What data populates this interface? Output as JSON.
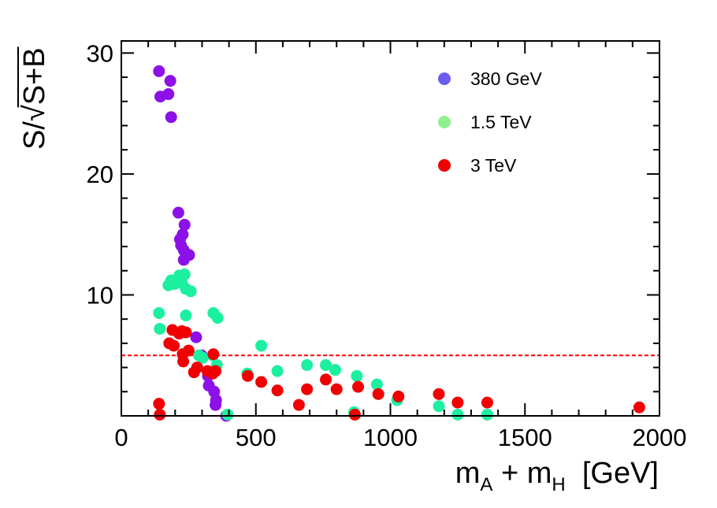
{
  "chart_data": {
    "type": "scatter",
    "title": "",
    "xlabel": "m_A + m_H  [GeV]",
    "xlabel_parts": {
      "main": "m",
      "sub1": "A",
      "plus": " + m",
      "sub2": "H",
      "unit": "  [GeV]"
    },
    "ylabel": "S/√S+B",
    "ylabel_parts": {
      "prefix": "S/",
      "radical": "√",
      "radicand": "S+B"
    },
    "xlim": [
      0,
      2000
    ],
    "ylim": [
      0,
      31
    ],
    "xticks": [
      0,
      500,
      1000,
      1500,
      2000
    ],
    "yticks": [
      10,
      20,
      30
    ],
    "x_minor_step": 100,
    "y_minor_step": 2,
    "reference_line": {
      "y": 5,
      "style": "dashed",
      "color": "#ff0000"
    },
    "legend_position": "top-right",
    "series": [
      {
        "name": "380 GeV",
        "legend_color": "#6b5cf0",
        "color": "#8c10e8",
        "points": [
          [
            140,
            28.5
          ],
          [
            145,
            26.4
          ],
          [
            175,
            26.6
          ],
          [
            182,
            27.7
          ],
          [
            185,
            24.7
          ],
          [
            212,
            16.8
          ],
          [
            235,
            15.8
          ],
          [
            228,
            15.0
          ],
          [
            218,
            14.6
          ],
          [
            222,
            14.1
          ],
          [
            232,
            13.7
          ],
          [
            252,
            13.3
          ],
          [
            232,
            12.9
          ],
          [
            278,
            6.5
          ],
          [
            298,
            5.0
          ],
          [
            322,
            3.3
          ],
          [
            325,
            2.5
          ],
          [
            345,
            2.0
          ],
          [
            352,
            1.3
          ],
          [
            350,
            0.9
          ],
          [
            390,
            0.0
          ]
        ]
      },
      {
        "name": "1.5 TeV",
        "legend_color": "#90f090",
        "color": "#1cf0a0",
        "points": [
          [
            140,
            8.5
          ],
          [
            143,
            7.2
          ],
          [
            175,
            10.8
          ],
          [
            185,
            11.2
          ],
          [
            198,
            10.9
          ],
          [
            215,
            11.6
          ],
          [
            225,
            11.0
          ],
          [
            235,
            11.7
          ],
          [
            240,
            10.5
          ],
          [
            258,
            10.3
          ],
          [
            240,
            8.3
          ],
          [
            342,
            8.5
          ],
          [
            358,
            8.1
          ],
          [
            288,
            5.0
          ],
          [
            302,
            4.8
          ],
          [
            340,
            5.0
          ],
          [
            355,
            4.2
          ],
          [
            468,
            3.5
          ],
          [
            520,
            5.8
          ],
          [
            580,
            3.7
          ],
          [
            690,
            4.2
          ],
          [
            760,
            4.2
          ],
          [
            795,
            3.8
          ],
          [
            875,
            3.3
          ],
          [
            950,
            2.6
          ],
          [
            1025,
            1.3
          ],
          [
            1180,
            0.8
          ],
          [
            1250,
            0.1
          ],
          [
            1360,
            0.1
          ],
          [
            865,
            0.3
          ],
          [
            395,
            0.1
          ]
        ]
      },
      {
        "name": "3 TeV",
        "legend_color": "#f00000",
        "color": "#f00000",
        "points": [
          [
            140,
            1.0
          ],
          [
            143,
            0.1
          ],
          [
            178,
            6.0
          ],
          [
            190,
            7.1
          ],
          [
            195,
            5.8
          ],
          [
            215,
            6.8
          ],
          [
            225,
            7.0
          ],
          [
            240,
            6.9
          ],
          [
            228,
            5.1
          ],
          [
            230,
            4.5
          ],
          [
            250,
            5.4
          ],
          [
            270,
            3.6
          ],
          [
            282,
            4.0
          ],
          [
            320,
            3.7
          ],
          [
            340,
            3.5
          ],
          [
            350,
            3.7
          ],
          [
            342,
            5.1
          ],
          [
            470,
            3.3
          ],
          [
            520,
            2.8
          ],
          [
            580,
            2.1
          ],
          [
            660,
            0.9
          ],
          [
            690,
            2.2
          ],
          [
            760,
            3.0
          ],
          [
            800,
            2.2
          ],
          [
            880,
            2.4
          ],
          [
            955,
            1.8
          ],
          [
            1030,
            1.6
          ],
          [
            1180,
            1.8
          ],
          [
            1250,
            1.1
          ],
          [
            1360,
            1.1
          ],
          [
            1925,
            0.7
          ],
          [
            868,
            0.1
          ]
        ]
      }
    ]
  }
}
